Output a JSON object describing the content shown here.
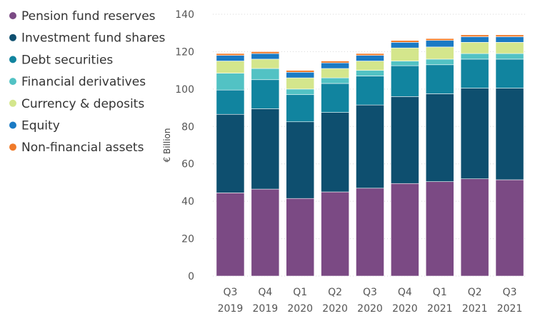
{
  "chart_data": {
    "type": "bar",
    "stacked": true,
    "title": "",
    "xlabel": "",
    "ylabel": "€ Billion",
    "ylim": [
      0,
      140
    ],
    "yticks": [
      0,
      20,
      40,
      60,
      80,
      100,
      120,
      140
    ],
    "categories": [
      [
        "Q3",
        "2019"
      ],
      [
        "Q4",
        "2019"
      ],
      [
        "Q1",
        "2020"
      ],
      [
        "Q2",
        "2020"
      ],
      [
        "Q3",
        "2020"
      ],
      [
        "Q4",
        "2020"
      ],
      [
        "Q1",
        "2021"
      ],
      [
        "Q2",
        "2021"
      ],
      [
        "Q3",
        "2021"
      ]
    ],
    "legend_position": "left",
    "series": [
      {
        "name": "Pension fund reserves",
        "color": "#7b4a84",
        "values": [
          44.5,
          46.5,
          41.5,
          45,
          47,
          49.5,
          50.5,
          52,
          51.5
        ]
      },
      {
        "name": "Investment fund shares",
        "color": "#0e4f6f",
        "values": [
          42,
          43,
          41,
          42.5,
          44.5,
          46.5,
          47,
          48.5,
          49
        ]
      },
      {
        "name": "Debt securities",
        "color": "#11849f",
        "values": [
          13,
          15.5,
          14.5,
          15.5,
          15.5,
          16.5,
          15.5,
          15.5,
          15.5
        ]
      },
      {
        "name": "Financial derivatives",
        "color": "#52c2c4",
        "values": [
          9,
          6,
          3,
          3,
          3,
          2.5,
          3,
          3,
          3
        ]
      },
      {
        "name": "Currency & deposits",
        "color": "#d4e68c",
        "values": [
          6.5,
          5,
          6,
          5,
          5,
          7,
          6.5,
          6,
          6
        ]
      },
      {
        "name": "Equity",
        "color": "#1a7ac4",
        "values": [
          3,
          3,
          3,
          3,
          3,
          3,
          3.5,
          3,
          3
        ]
      },
      {
        "name": "Non-financial assets",
        "color": "#f07a29",
        "values": [
          1,
          1,
          1,
          1,
          1,
          1,
          1,
          1,
          1
        ]
      }
    ]
  }
}
